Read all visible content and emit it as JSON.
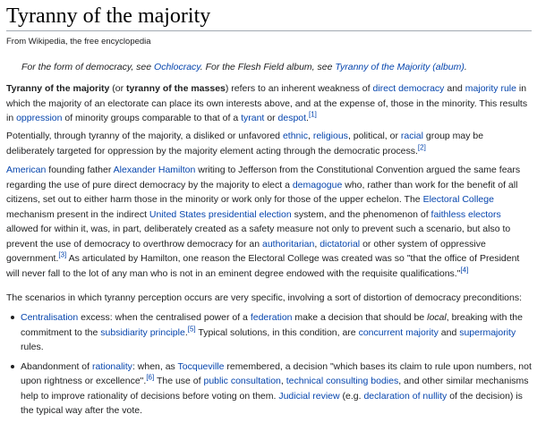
{
  "title": "Tyranny of the majority",
  "tagline": "From Wikipedia, the free encyclopedia",
  "hatnote": {
    "t1": "For the form of democracy, see ",
    "l1": "Ochlocracy",
    "t2": ". For the Flesh Field album, see ",
    "l2": "Tyranny of the Majority (album)",
    "t3": "."
  },
  "p1": {
    "b1": "Tyranny of the majority",
    "t1": " (or ",
    "b2": "tyranny of the masses",
    "t2": ") refers to an inherent weakness of ",
    "l1": "direct democracy",
    "t3": " and ",
    "l2": "majority rule",
    "t4": " in which the majority of an electorate can place its own interests above, and at the expense of, those in the minority. This results in ",
    "l3": "oppression",
    "t5": " of minority groups comparable to that of a ",
    "l4": "tyrant",
    "t6": " or ",
    "l5": "despot",
    "t7": ".",
    "r1": "[1]"
  },
  "p2": {
    "t1": "Potentially, through tyranny of the majority, a disliked or unfavored ",
    "l1": "ethnic",
    "t2": ", ",
    "l2": "religious",
    "t3": ", political, or ",
    "l3": "racial",
    "t4": " group may be deliberately targeted for oppression by the majority element acting through the democratic process.",
    "r1": "[2]"
  },
  "p3": {
    "l1": "American",
    "t1": " founding father ",
    "l2": "Alexander Hamilton",
    "t2": " writing to Jefferson from the Constitutional Convention argued the same fears regarding the use of pure direct democracy by the majority to elect a ",
    "l3": "demagogue",
    "t3": " who, rather than work for the benefit of all citizens, set out to either harm those in the minority or work only for those of the upper echelon. The ",
    "l4": "Electoral College",
    "t4": " mechanism present in the indirect ",
    "l5": "United States presidential election",
    "t5": " system, and the phenomenon of ",
    "l6": "faithless electors",
    "t6": " allowed for within it, was, in part, deliberately created as a safety measure not only to prevent such a scenario, but also to prevent the use of democracy to overthrow democracy for an ",
    "l7": "authoritarian",
    "t7": ", ",
    "l8": "dictatorial",
    "t8": " or other system of oppressive government.",
    "r1": "[3]",
    "t9": " As articulated by Hamilton, one reason the Electoral College was created was so \"that the office of President will never fall to the lot of any man who is not in an eminent degree endowed with the requisite qualifications.\"",
    "r2": "[4]"
  },
  "p4": {
    "t1": "The scenarios in which tyranny perception occurs are very specific, involving a sort of distortion of democracy preconditions:"
  },
  "items": [
    {
      "l1": "Centralisation",
      "t1": " excess: when the centralised power of a ",
      "l2": "federation",
      "t2": " make a decision that should be ",
      "i1": "local",
      "t3": ", breaking with the commitment to the ",
      "l3": "subsidiarity principle",
      "t4": ".",
      "r1": "[5]",
      "t5": " Typical solutions, in this condition, are ",
      "l4": "concurrent majority",
      "t6": " and ",
      "l5": "supermajority",
      "t7": " rules."
    },
    {
      "t1": "Abandonment of ",
      "l1": "rationality",
      "t2": ": when, as ",
      "l2": "Tocqueville",
      "t3": " remembered, a decision \"which bases its claim to rule upon numbers, not upon rightness or excellence\".",
      "r1": "[6]",
      "t4": " The use of ",
      "l3": "public consultation",
      "t5": ", ",
      "l4": "technical consulting bodies",
      "t6": ", and other similar mechanisms help to improve rationality of decisions before voting on them. ",
      "l5": "Judicial review",
      "t7": " (e.g. ",
      "l6": "declaration of nullity",
      "t8": " of the decision) is the typical way after the vote."
    }
  ],
  "colors": {
    "link": "#0645ad",
    "text": "#202122",
    "rule": "#a2a9b1"
  }
}
